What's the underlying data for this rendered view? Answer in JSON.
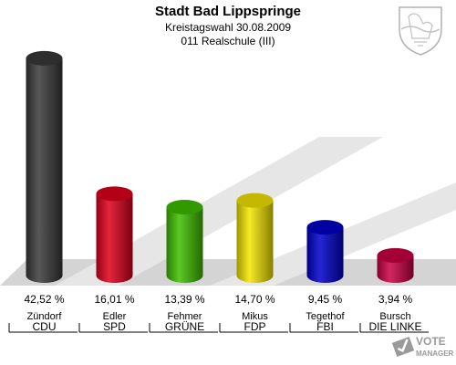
{
  "chart_data": {
    "type": "bar",
    "title": "Stadt Bad Lippspringe",
    "subtitle": "Kreistagswahl 30.08.2009",
    "subtitle2": "011 Realschule (III)",
    "unit": "%",
    "categories": [
      "CDU",
      "SPD",
      "GRÜNE",
      "FDP",
      "FBI",
      "DIE LINKE"
    ],
    "candidates": [
      "Zündorf",
      "Edler",
      "Fehmer",
      "Mikus",
      "Tegethof",
      "Bursch"
    ],
    "values": [
      42.52,
      16.01,
      13.39,
      14.7,
      9.45,
      3.94
    ],
    "value_labels": [
      "42,52 %",
      "16,01 %",
      "13,39 %",
      "14,70 %",
      "9,45 %",
      "3,94 %"
    ],
    "colors": [
      "#3a3a3a",
      "#e0001b",
      "#3fbf00",
      "#f5e600",
      "#0000cc",
      "#cc0044"
    ],
    "ylim": [
      0,
      45
    ]
  },
  "branding": {
    "logo_line1": "VOTE",
    "logo_line2": "MANAGER"
  }
}
